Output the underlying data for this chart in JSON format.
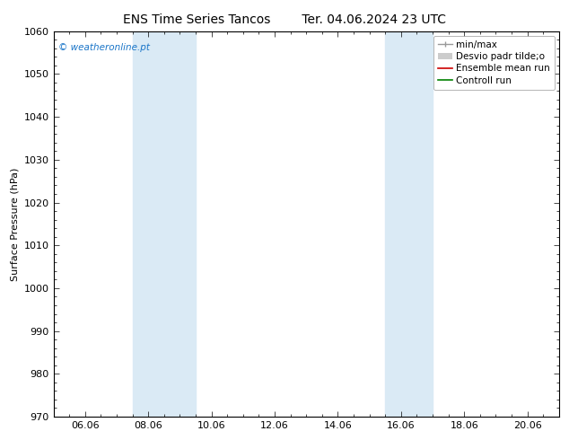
{
  "title_left": "ENS Time Series Tancos",
  "title_right": "Ter. 04.06.2024 23 UTC",
  "ylabel": "Surface Pressure (hPa)",
  "ylim": [
    970,
    1060
  ],
  "yticks": [
    970,
    980,
    990,
    1000,
    1010,
    1020,
    1030,
    1040,
    1050,
    1060
  ],
  "x_min": 0.0,
  "x_max": 16.0,
  "xtick_labels": [
    "06.06",
    "08.06",
    "10.06",
    "12.06",
    "14.06",
    "16.06",
    "18.06",
    "20.06"
  ],
  "xtick_positions": [
    1.0,
    3.0,
    5.0,
    7.0,
    9.0,
    11.0,
    13.0,
    15.0
  ],
  "shaded_bands": [
    {
      "x_start": 2.5,
      "x_end": 4.5
    },
    {
      "x_start": 10.5,
      "x_end": 12.0
    }
  ],
  "shaded_color": "#daeaf5",
  "watermark": "© weatheronline.pt",
  "watermark_color": "#1a75c8",
  "background_color": "#ffffff",
  "plot_bg_color": "#ffffff",
  "legend_fontsize": 7.5,
  "title_fontsize": 10,
  "axis_label_fontsize": 8,
  "tick_fontsize": 8
}
